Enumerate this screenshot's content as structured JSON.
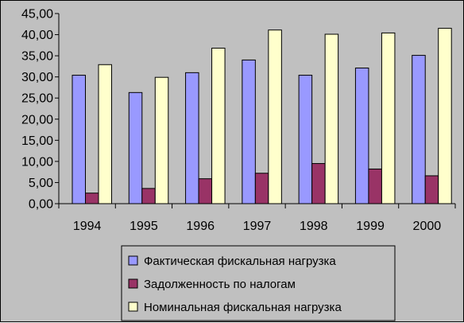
{
  "chart_data": {
    "type": "bar",
    "title": "",
    "xlabel": "",
    "ylabel": "",
    "categories": [
      "1994",
      "1995",
      "1996",
      "1997",
      "1998",
      "1999",
      "2000"
    ],
    "series": [
      {
        "name": "Фактическая фискальная нагрузка",
        "color": "#9999ff",
        "values": [
          30.4,
          26.3,
          31.0,
          34.0,
          30.4,
          32.1,
          35.1
        ]
      },
      {
        "name": "Задолженность по налогам",
        "color": "#993366",
        "values": [
          2.5,
          3.6,
          5.9,
          7.2,
          9.5,
          8.2,
          6.6
        ]
      },
      {
        "name": "Номинальная фискальная нагрузка",
        "color": "#ffffcc",
        "values": [
          32.9,
          29.9,
          36.8,
          41.1,
          40.1,
          40.4,
          41.5
        ]
      }
    ],
    "ylim": [
      0,
      45
    ],
    "ytick_labels": [
      "0,00",
      "5,00",
      "10,00",
      "15,00",
      "20,00",
      "25,00",
      "30,00",
      "35,00",
      "40,00",
      "45,00"
    ],
    "grid": false,
    "legend_position": "bottom",
    "plot_background": "#c0c0c0"
  }
}
